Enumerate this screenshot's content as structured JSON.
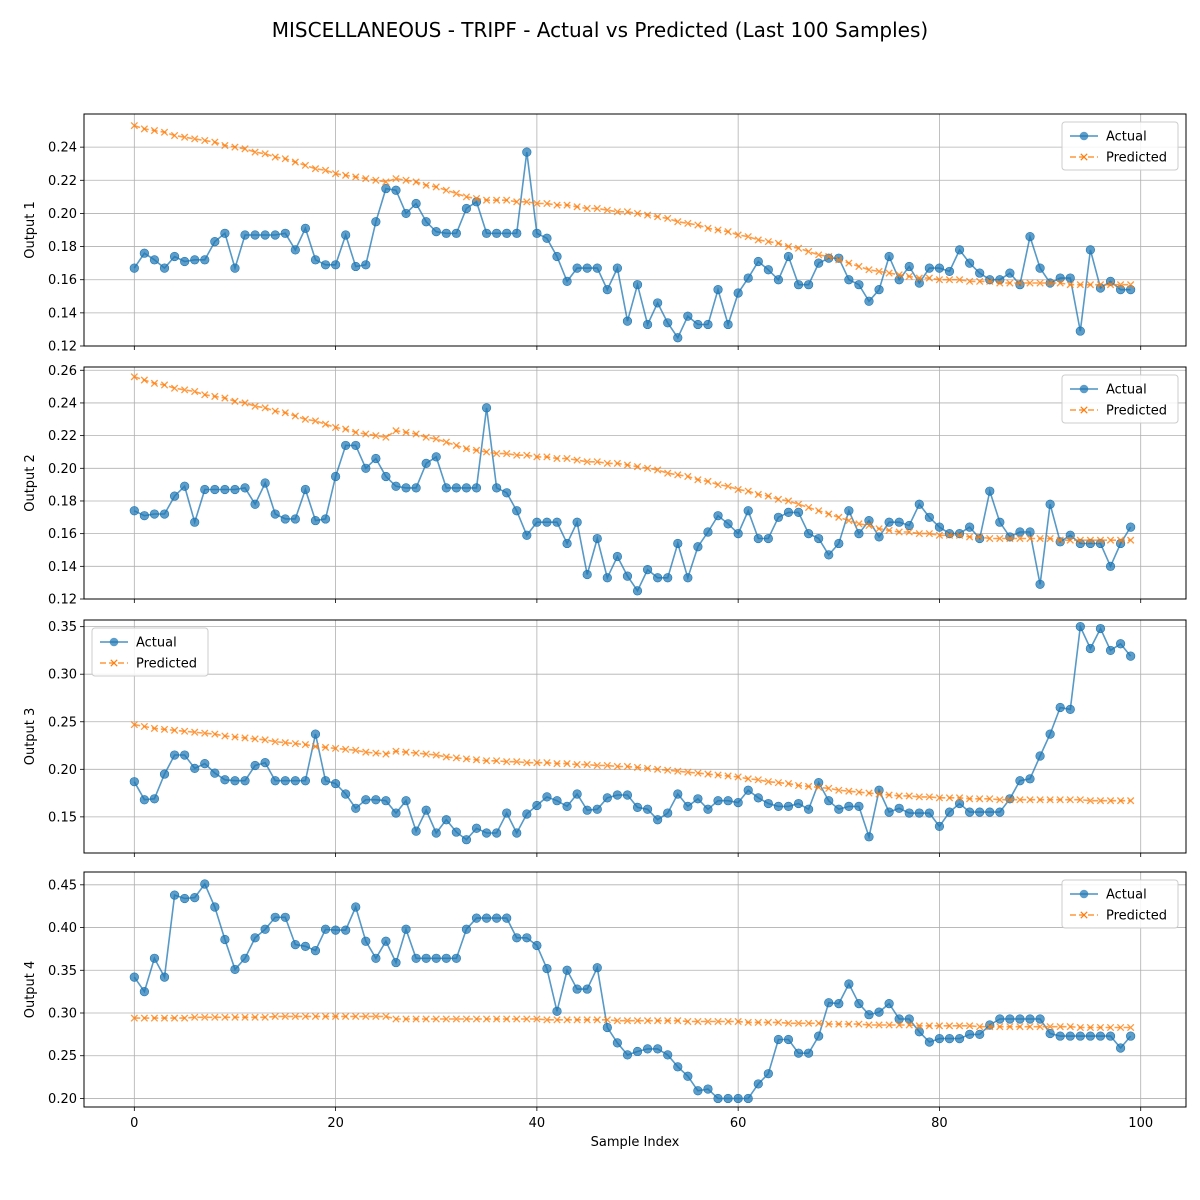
{
  "figure_title": "MISCELLANEOUS - TRIPF - Actual vs Predicted (Last 100 Samples)",
  "colors": {
    "actual": "#1f77b4",
    "predicted": "#ff7f0e",
    "grid": "#b0b0b0",
    "axis": "#000000"
  },
  "chart_data": [
    {
      "type": "line",
      "ylabel": "Output 1",
      "ylim": [
        0.12,
        0.26
      ],
      "yticks": [
        0.12,
        0.14,
        0.16,
        0.18,
        0.2,
        0.22,
        0.24
      ],
      "ytick_labels": [
        "0.12",
        "0.14",
        "0.16",
        "0.18",
        "0.20",
        "0.22",
        "0.24"
      ],
      "legend": "top-right",
      "series": [
        {
          "name": "Actual",
          "marker": "o",
          "values": [
            0.167,
            0.176,
            0.172,
            0.167,
            0.174,
            0.171,
            0.172,
            0.172,
            0.183,
            0.188,
            0.167,
            0.187,
            0.187,
            0.187,
            0.187,
            0.188,
            0.178,
            0.191,
            0.172,
            0.169,
            0.169,
            0.187,
            0.168,
            0.169,
            0.195,
            0.215,
            0.214,
            0.2,
            0.206,
            0.195,
            0.189,
            0.188,
            0.188,
            0.203,
            0.207,
            0.188,
            0.188,
            0.188,
            0.188,
            0.237,
            0.188,
            0.185,
            0.174,
            0.159,
            0.167,
            0.167,
            0.167,
            0.154,
            0.167,
            0.135,
            0.157,
            0.133,
            0.146,
            0.134,
            0.125,
            0.138,
            0.133,
            0.133,
            0.154,
            0.133,
            0.152,
            0.161,
            0.171,
            0.166,
            0.16,
            0.174,
            0.157,
            0.157,
            0.17,
            0.173,
            0.173,
            0.16,
            0.157,
            0.147,
            0.154,
            0.174,
            0.16,
            0.168,
            0.158,
            0.167,
            0.167,
            0.165,
            0.178,
            0.17,
            0.164,
            0.16,
            0.16,
            0.164,
            0.157,
            0.186,
            0.167,
            0.158,
            0.161,
            0.161,
            0.129,
            0.178,
            0.155,
            0.159,
            0.154,
            0.154
          ]
        },
        {
          "name": "Predicted",
          "marker": "x",
          "values": [
            0.253,
            0.251,
            0.25,
            0.249,
            0.247,
            0.246,
            0.245,
            0.244,
            0.243,
            0.241,
            0.24,
            0.239,
            0.237,
            0.236,
            0.234,
            0.233,
            0.231,
            0.229,
            0.227,
            0.226,
            0.224,
            0.223,
            0.222,
            0.221,
            0.22,
            0.219,
            0.221,
            0.22,
            0.219,
            0.217,
            0.216,
            0.214,
            0.212,
            0.21,
            0.209,
            0.208,
            0.208,
            0.208,
            0.207,
            0.207,
            0.206,
            0.206,
            0.205,
            0.205,
            0.204,
            0.203,
            0.203,
            0.202,
            0.201,
            0.201,
            0.2,
            0.199,
            0.198,
            0.197,
            0.195,
            0.194,
            0.193,
            0.191,
            0.19,
            0.189,
            0.187,
            0.186,
            0.184,
            0.183,
            0.182,
            0.18,
            0.179,
            0.177,
            0.175,
            0.174,
            0.172,
            0.17,
            0.168,
            0.166,
            0.165,
            0.164,
            0.163,
            0.162,
            0.161,
            0.161,
            0.16,
            0.16,
            0.16,
            0.159,
            0.159,
            0.159,
            0.158,
            0.158,
            0.158,
            0.158,
            0.158,
            0.158,
            0.158,
            0.157,
            0.157,
            0.157,
            0.157,
            0.157,
            0.157,
            0.157
          ]
        }
      ]
    },
    {
      "type": "line",
      "ylabel": "Output 2",
      "ylim": [
        0.12,
        0.262
      ],
      "yticks": [
        0.12,
        0.14,
        0.16,
        0.18,
        0.2,
        0.22,
        0.24,
        0.26
      ],
      "ytick_labels": [
        "0.12",
        "0.14",
        "0.16",
        "0.18",
        "0.20",
        "0.22",
        "0.24",
        "0.26"
      ],
      "legend": "top-right",
      "series": [
        {
          "name": "Actual",
          "marker": "o",
          "values": [
            0.174,
            0.171,
            0.172,
            0.172,
            0.183,
            0.189,
            0.167,
            0.187,
            0.187,
            0.187,
            0.187,
            0.188,
            0.178,
            0.191,
            0.172,
            0.169,
            0.169,
            0.187,
            0.168,
            0.169,
            0.195,
            0.214,
            0.214,
            0.2,
            0.206,
            0.195,
            0.189,
            0.188,
            0.188,
            0.203,
            0.207,
            0.188,
            0.188,
            0.188,
            0.188,
            0.237,
            0.188,
            0.185,
            0.174,
            0.159,
            0.167,
            0.167,
            0.167,
            0.154,
            0.167,
            0.135,
            0.157,
            0.133,
            0.146,
            0.134,
            0.125,
            0.138,
            0.133,
            0.133,
            0.154,
            0.133,
            0.152,
            0.161,
            0.171,
            0.166,
            0.16,
            0.174,
            0.157,
            0.157,
            0.17,
            0.173,
            0.173,
            0.16,
            0.157,
            0.147,
            0.154,
            0.174,
            0.16,
            0.168,
            0.158,
            0.167,
            0.167,
            0.165,
            0.178,
            0.17,
            0.164,
            0.16,
            0.16,
            0.164,
            0.157,
            0.186,
            0.167,
            0.158,
            0.161,
            0.161,
            0.129,
            0.178,
            0.155,
            0.159,
            0.154,
            0.154,
            0.154,
            0.14,
            0.154,
            0.164
          ]
        },
        {
          "name": "Predicted",
          "marker": "x",
          "values": [
            0.256,
            0.254,
            0.252,
            0.251,
            0.249,
            0.248,
            0.247,
            0.245,
            0.244,
            0.243,
            0.241,
            0.24,
            0.238,
            0.237,
            0.235,
            0.234,
            0.232,
            0.23,
            0.229,
            0.227,
            0.225,
            0.224,
            0.222,
            0.221,
            0.22,
            0.219,
            0.223,
            0.222,
            0.221,
            0.219,
            0.218,
            0.216,
            0.214,
            0.212,
            0.211,
            0.21,
            0.209,
            0.209,
            0.208,
            0.208,
            0.207,
            0.207,
            0.206,
            0.206,
            0.205,
            0.204,
            0.204,
            0.203,
            0.203,
            0.202,
            0.201,
            0.2,
            0.199,
            0.197,
            0.196,
            0.195,
            0.193,
            0.192,
            0.19,
            0.189,
            0.187,
            0.186,
            0.184,
            0.183,
            0.181,
            0.18,
            0.178,
            0.176,
            0.174,
            0.172,
            0.17,
            0.168,
            0.166,
            0.165,
            0.163,
            0.162,
            0.161,
            0.161,
            0.16,
            0.16,
            0.159,
            0.159,
            0.159,
            0.158,
            0.158,
            0.157,
            0.157,
            0.157,
            0.157,
            0.157,
            0.157,
            0.157,
            0.156,
            0.156,
            0.156,
            0.156,
            0.156,
            0.156,
            0.156,
            0.156
          ]
        }
      ]
    },
    {
      "type": "line",
      "ylabel": "Output 3",
      "ylim": [
        0.112,
        0.357
      ],
      "yticks": [
        0.15,
        0.2,
        0.25,
        0.3,
        0.35
      ],
      "ytick_labels": [
        "0.15",
        "0.20",
        "0.25",
        "0.30",
        "0.35"
      ],
      "legend": "top-left",
      "series": [
        {
          "name": "Actual",
          "marker": "o",
          "values": [
            0.187,
            0.168,
            0.169,
            0.195,
            0.215,
            0.215,
            0.201,
            0.206,
            0.196,
            0.189,
            0.188,
            0.188,
            0.204,
            0.207,
            0.188,
            0.188,
            0.188,
            0.188,
            0.237,
            0.188,
            0.185,
            0.174,
            0.159,
            0.168,
            0.168,
            0.167,
            0.154,
            0.167,
            0.135,
            0.157,
            0.133,
            0.147,
            0.134,
            0.126,
            0.138,
            0.133,
            0.133,
            0.154,
            0.133,
            0.153,
            0.162,
            0.171,
            0.167,
            0.161,
            0.174,
            0.157,
            0.158,
            0.17,
            0.173,
            0.173,
            0.16,
            0.158,
            0.147,
            0.154,
            0.174,
            0.161,
            0.169,
            0.158,
            0.167,
            0.167,
            0.165,
            0.178,
            0.17,
            0.164,
            0.161,
            0.161,
            0.164,
            0.158,
            0.186,
            0.167,
            0.158,
            0.161,
            0.161,
            0.129,
            0.178,
            0.155,
            0.159,
            0.154,
            0.154,
            0.154,
            0.14,
            0.155,
            0.164,
            0.155,
            0.155,
            0.155,
            0.155,
            0.169,
            0.188,
            0.19,
            0.214,
            0.237,
            0.265,
            0.263,
            0.35,
            0.327,
            0.348,
            0.325,
            0.332,
            0.319
          ]
        },
        {
          "name": "Predicted",
          "marker": "x",
          "values": [
            0.247,
            0.245,
            0.243,
            0.242,
            0.241,
            0.24,
            0.239,
            0.238,
            0.237,
            0.235,
            0.234,
            0.233,
            0.232,
            0.231,
            0.229,
            0.228,
            0.227,
            0.226,
            0.224,
            0.223,
            0.222,
            0.221,
            0.22,
            0.218,
            0.217,
            0.216,
            0.219,
            0.218,
            0.217,
            0.216,
            0.215,
            0.213,
            0.212,
            0.211,
            0.21,
            0.209,
            0.209,
            0.208,
            0.208,
            0.207,
            0.207,
            0.207,
            0.206,
            0.206,
            0.205,
            0.205,
            0.204,
            0.204,
            0.203,
            0.203,
            0.202,
            0.201,
            0.2,
            0.199,
            0.198,
            0.197,
            0.196,
            0.195,
            0.194,
            0.193,
            0.192,
            0.19,
            0.189,
            0.187,
            0.186,
            0.185,
            0.183,
            0.182,
            0.181,
            0.18,
            0.178,
            0.177,
            0.176,
            0.175,
            0.174,
            0.173,
            0.172,
            0.172,
            0.171,
            0.171,
            0.17,
            0.17,
            0.17,
            0.169,
            0.169,
            0.169,
            0.168,
            0.168,
            0.168,
            0.168,
            0.168,
            0.168,
            0.168,
            0.168,
            0.168,
            0.167,
            0.167,
            0.167,
            0.167,
            0.167
          ]
        }
      ]
    },
    {
      "type": "line",
      "ylabel": "Output 4",
      "ylim": [
        0.19,
        0.465
      ],
      "yticks": [
        0.2,
        0.25,
        0.3,
        0.35,
        0.4,
        0.45
      ],
      "ytick_labels": [
        "0.20",
        "0.25",
        "0.30",
        "0.35",
        "0.40",
        "0.45"
      ],
      "xlabel": "Sample Index",
      "xticks": [
        0,
        20,
        40,
        60,
        80,
        100
      ],
      "legend": "top-right",
      "series": [
        {
          "name": "Actual",
          "marker": "o",
          "values": [
            0.342,
            0.325,
            0.364,
            0.342,
            0.438,
            0.434,
            0.435,
            0.451,
            0.424,
            0.386,
            0.351,
            0.364,
            0.388,
            0.398,
            0.412,
            0.412,
            0.38,
            0.378,
            0.373,
            0.398,
            0.397,
            0.397,
            0.424,
            0.384,
            0.364,
            0.384,
            0.359,
            0.398,
            0.364,
            0.364,
            0.364,
            0.364,
            0.364,
            0.398,
            0.411,
            0.411,
            0.411,
            0.411,
            0.388,
            0.388,
            0.379,
            0.352,
            0.302,
            0.35,
            0.328,
            0.328,
            0.353,
            0.283,
            0.265,
            0.251,
            0.255,
            0.258,
            0.258,
            0.251,
            0.237,
            0.226,
            0.209,
            0.211,
            0.2,
            0.2,
            0.2,
            0.2,
            0.217,
            0.229,
            0.269,
            0.269,
            0.253,
            0.253,
            0.273,
            0.312,
            0.311,
            0.334,
            0.311,
            0.298,
            0.301,
            0.311,
            0.293,
            0.293,
            0.278,
            0.266,
            0.27,
            0.27,
            0.27,
            0.275,
            0.275,
            0.286,
            0.293,
            0.293,
            0.293,
            0.293,
            0.293,
            0.276,
            0.273,
            0.273,
            0.273,
            0.273,
            0.273,
            0.273,
            0.259,
            0.273
          ]
        },
        {
          "name": "Predicted",
          "marker": "x",
          "values": [
            0.294,
            0.294,
            0.294,
            0.294,
            0.294,
            0.294,
            0.295,
            0.295,
            0.295,
            0.295,
            0.295,
            0.295,
            0.295,
            0.295,
            0.296,
            0.296,
            0.296,
            0.296,
            0.296,
            0.296,
            0.296,
            0.296,
            0.296,
            0.296,
            0.296,
            0.296,
            0.293,
            0.293,
            0.293,
            0.293,
            0.293,
            0.293,
            0.293,
            0.293,
            0.293,
            0.293,
            0.293,
            0.293,
            0.293,
            0.293,
            0.293,
            0.292,
            0.292,
            0.292,
            0.292,
            0.292,
            0.292,
            0.292,
            0.291,
            0.291,
            0.291,
            0.291,
            0.291,
            0.291,
            0.291,
            0.29,
            0.29,
            0.29,
            0.29,
            0.29,
            0.29,
            0.289,
            0.289,
            0.289,
            0.289,
            0.288,
            0.288,
            0.288,
            0.288,
            0.287,
            0.287,
            0.287,
            0.287,
            0.286,
            0.286,
            0.286,
            0.286,
            0.286,
            0.285,
            0.285,
            0.285,
            0.285,
            0.285,
            0.285,
            0.284,
            0.284,
            0.284,
            0.284,
            0.284,
            0.284,
            0.284,
            0.284,
            0.284,
            0.284,
            0.283,
            0.283,
            0.283,
            0.283,
            0.283,
            0.283
          ]
        }
      ]
    }
  ]
}
